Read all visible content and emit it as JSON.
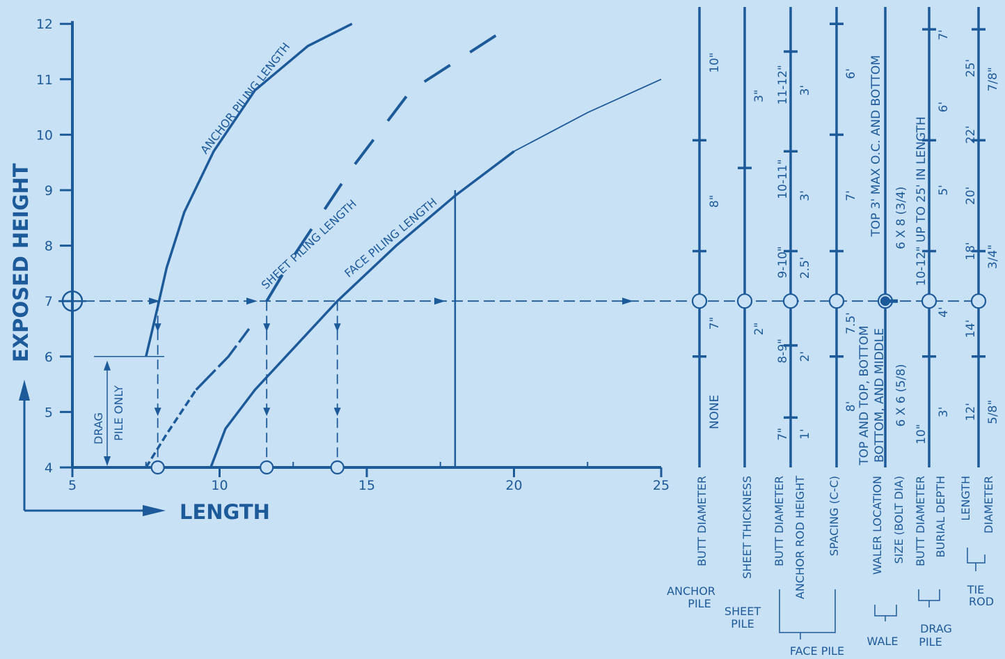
{
  "chart_data": {
    "type": "line",
    "xlabel": "LENGTH",
    "ylabel": "EXPOSED HEIGHT",
    "xlim": [
      5,
      25
    ],
    "ylim": [
      4,
      12
    ],
    "x_ticks": [
      "5",
      "10",
      "15",
      "20",
      "25"
    ],
    "y_ticks": [
      "4",
      "5",
      "6",
      "7",
      "8",
      "9",
      "10",
      "11",
      "12"
    ],
    "series": [
      {
        "name": "ANCHOR PILING LENGTH",
        "style": "solid",
        "points": [
          [
            7.5,
            6
          ],
          [
            7.9,
            6.9
          ],
          [
            8.2,
            7.6
          ],
          [
            8.8,
            8.6
          ],
          [
            9.8,
            9.7
          ],
          [
            11.2,
            10.8
          ],
          [
            13.0,
            11.6
          ],
          [
            14.5,
            12
          ]
        ]
      },
      {
        "name": "SHEET PILING LENGTH",
        "style": "dashed",
        "points": [
          [
            7.5,
            4
          ],
          [
            8.2,
            4.6
          ],
          [
            9.2,
            5.4
          ],
          [
            10.3,
            6.0
          ],
          [
            11.0,
            6.5
          ],
          [
            11.6,
            7.0
          ],
          [
            12.5,
            7.8
          ],
          [
            14.5,
            9.4
          ],
          [
            16.5,
            10.8
          ],
          [
            20.0,
            12
          ]
        ]
      },
      {
        "name": "FACE PILING LENGTH",
        "style": "solid",
        "points": [
          [
            9.7,
            4
          ],
          [
            10.2,
            4.7
          ],
          [
            11.2,
            5.4
          ],
          [
            12.6,
            6.2
          ],
          [
            14.0,
            7.0
          ],
          [
            16.0,
            8.0
          ],
          [
            18.0,
            8.9
          ],
          [
            20.0,
            9.7
          ],
          [
            22.5,
            10.4
          ],
          [
            25.0,
            11.0
          ]
        ]
      }
    ],
    "annotations": {
      "drag_pile": [
        "DRAG",
        "PILE ONLY"
      ],
      "example_height": 7,
      "example_markers_x": [
        7.9,
        11.6,
        14.0
      ]
    },
    "scales": [
      {
        "key": "anchor_butt",
        "name": "BUTT DIAMETER",
        "labels": [
          {
            "y": 5,
            "text": "NONE"
          },
          {
            "y": 6.6,
            "text": "7\""
          },
          {
            "y": 8.8,
            "text": "8\""
          },
          {
            "y": 11.3,
            "text": "10\""
          }
        ]
      },
      {
        "key": "sheet_thick",
        "name": "SHEET THICKNESS",
        "labels": [
          {
            "y": 6.5,
            "text": "2\""
          },
          {
            "y": 10.7,
            "text": "3\""
          }
        ]
      },
      {
        "key": "face_butt",
        "name": "BUTT DIAMETER",
        "labels": [
          {
            "y": 4.6,
            "text": "7\""
          },
          {
            "y": 6.1,
            "text": "8-9\""
          },
          {
            "y": 7.7,
            "text": "9-10\""
          },
          {
            "y": 9.2,
            "text": "10-11\""
          },
          {
            "y": 10.9,
            "text": "11-12\""
          }
        ]
      },
      {
        "key": "face_rod",
        "name": "ANCHOR ROD HEIGHT",
        "labels": [
          {
            "y": 4.6,
            "text": "1'"
          },
          {
            "y": 6.0,
            "text": "2'"
          },
          {
            "y": 7.6,
            "text": "2.5'"
          },
          {
            "y": 8.9,
            "text": "3'"
          },
          {
            "y": 10.8,
            "text": "3'"
          }
        ]
      },
      {
        "key": "face_spacing",
        "name": "SPACING (C-C)",
        "labels": [
          {
            "y": 5.1,
            "text": "8'"
          },
          {
            "y": 6.6,
            "text": "7.5'"
          },
          {
            "y": 8.9,
            "text": "7'"
          },
          {
            "y": 11.1,
            "text": "6'"
          }
        ]
      },
      {
        "key": "wale_loc",
        "name": "WALER LOCATION",
        "labels": [
          {
            "y": 5.3,
            "text": "TOP AND TOP, BOTTOM"
          },
          {
            "y": 5.3,
            "text": "BOTTOM, AND MIDDLE"
          },
          {
            "y": 9.8,
            "text": "TOP 3' MAX O.C. AND BOTTOM"
          }
        ]
      },
      {
        "key": "wale_bolt",
        "name": "SIZE (BOLT DIA)",
        "labels": [
          {
            "y": 5.3,
            "text": "6 X 6  (5/8)"
          },
          {
            "y": 8.5,
            "text": "6 X 8  (3/4)"
          }
        ]
      },
      {
        "key": "drag_butt",
        "name": "BUTT DIAMETER",
        "labels": [
          {
            "y": 4.6,
            "text": "10\""
          },
          {
            "y": 8.8,
            "text": "10-12\" UP TO 25' IN LENGTH"
          }
        ]
      },
      {
        "key": "drag_burial",
        "name": "BURIAL DEPTH",
        "labels": [
          {
            "y": 5.0,
            "text": "3'"
          },
          {
            "y": 6.8,
            "text": "4'"
          },
          {
            "y": 9.0,
            "text": "5'"
          },
          {
            "y": 10.5,
            "text": "6'"
          },
          {
            "y": 11.8,
            "text": "7'"
          }
        ]
      },
      {
        "key": "tie_length",
        "name": "LENGTH",
        "labels": [
          {
            "y": 5.0,
            "text": "12'"
          },
          {
            "y": 6.5,
            "text": "14'"
          },
          {
            "y": 7.9,
            "text": "18'"
          },
          {
            "y": 8.9,
            "text": "20'"
          },
          {
            "y": 10.0,
            "text": "22'"
          },
          {
            "y": 11.2,
            "text": "25'"
          }
        ]
      },
      {
        "key": "tie_dia",
        "name": "DIAMETER",
        "labels": [
          {
            "y": 5.0,
            "text": "5/8\""
          },
          {
            "y": 7.8,
            "text": "3/4\""
          },
          {
            "y": 11.0,
            "text": "7/8\""
          }
        ]
      }
    ],
    "groups": [
      {
        "key": "anchor",
        "lines": [
          "ANCHOR",
          "PILE"
        ]
      },
      {
        "key": "sheet",
        "lines": [
          "SHEET",
          "PILE"
        ]
      },
      {
        "key": "face",
        "lines": [
          "FACE PILE"
        ]
      },
      {
        "key": "wale",
        "lines": [
          "WALE"
        ]
      },
      {
        "key": "drag",
        "lines": [
          "DRAG",
          "PILE"
        ]
      },
      {
        "key": "tie",
        "lines": [
          "TIE",
          "ROD"
        ]
      }
    ]
  }
}
